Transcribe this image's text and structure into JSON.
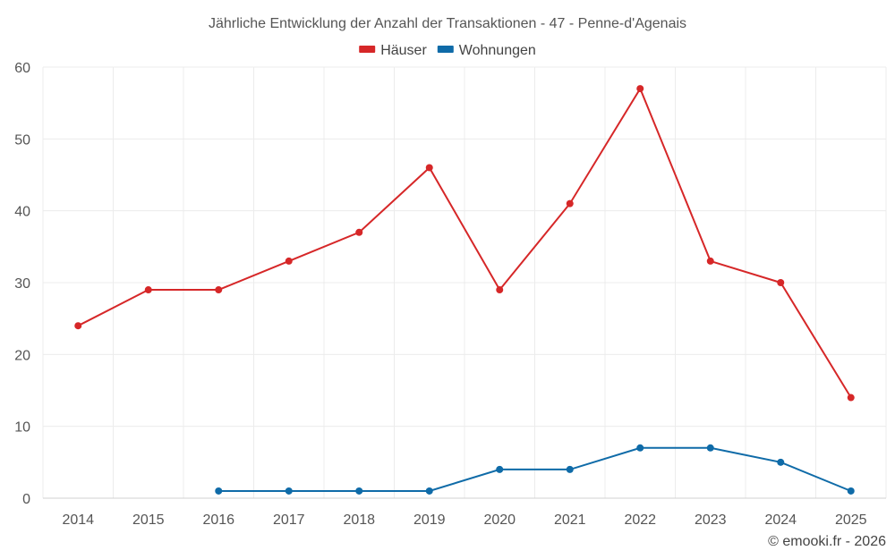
{
  "chart_data": {
    "type": "line",
    "title": "Jährliche Entwicklung der Anzahl der Transaktionen - 47 - Penne-d'Agenais",
    "x": [
      "2014",
      "2015",
      "2016",
      "2017",
      "2018",
      "2019",
      "2020",
      "2021",
      "2022",
      "2023",
      "2024",
      "2025"
    ],
    "ylim": [
      0,
      60
    ],
    "yticks": [
      0,
      10,
      20,
      30,
      40,
      50,
      60
    ],
    "grid": true,
    "legend_position": "top-center",
    "series": [
      {
        "name": "Häuser",
        "color": "#d62728",
        "values": [
          24,
          29,
          29,
          33,
          37,
          46,
          29,
          41,
          57,
          33,
          30,
          14
        ]
      },
      {
        "name": "Wohnungen",
        "color": "#0f6ba8",
        "values": [
          null,
          null,
          1,
          1,
          1,
          1,
          4,
          4,
          7,
          7,
          5,
          1
        ]
      }
    ]
  },
  "credit": "© emooki.fr - 2026"
}
